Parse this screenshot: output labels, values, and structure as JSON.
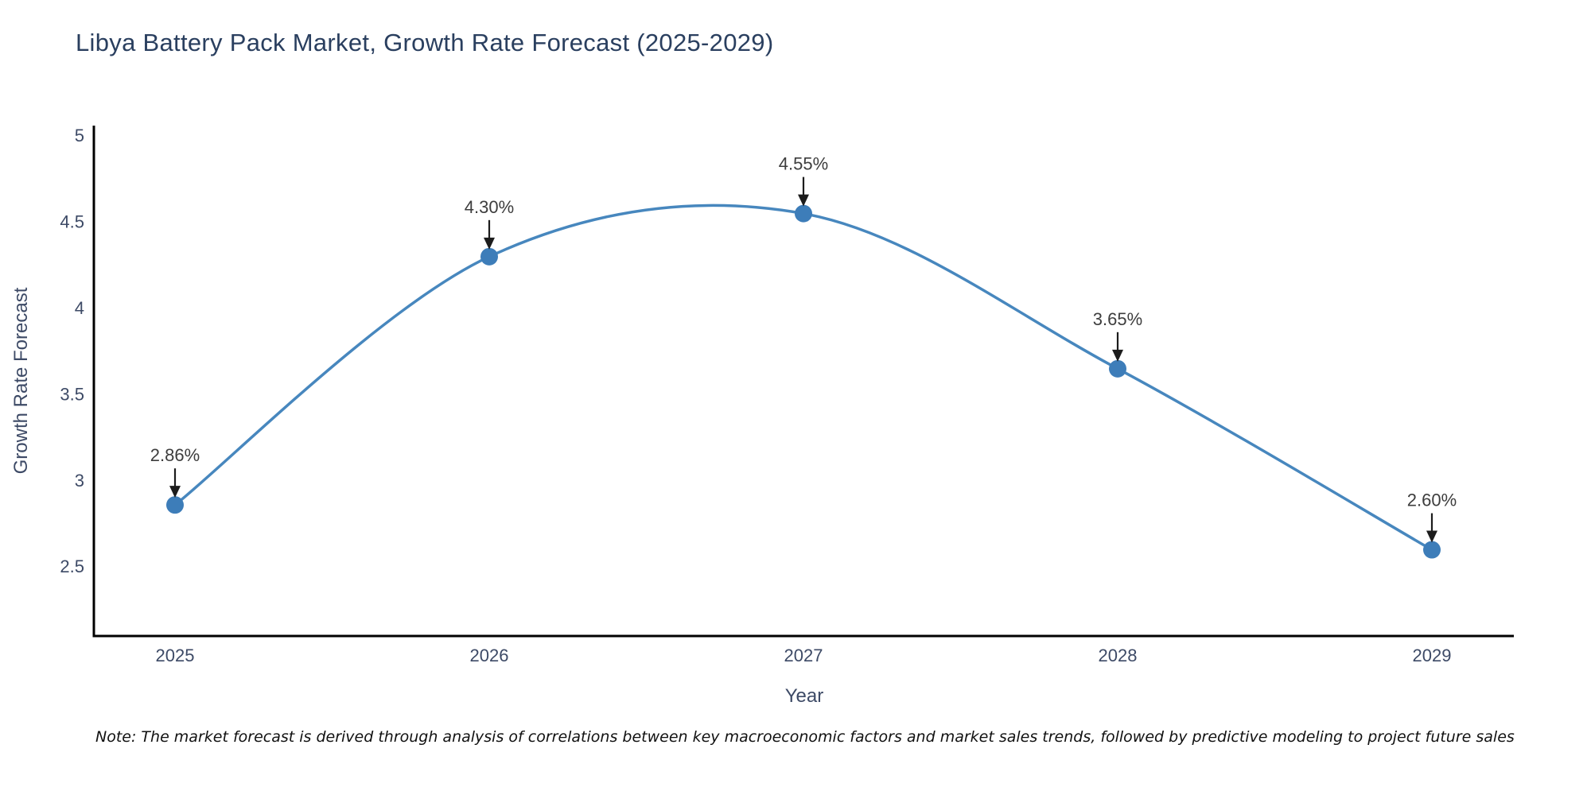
{
  "page": {
    "background": "#ffffff"
  },
  "chart_data": {
    "type": "line",
    "title": "Libya Battery Pack Market, Growth Rate Forecast (2025-2029)",
    "xlabel": "Year",
    "ylabel": "Growth Rate Forecast",
    "x": [
      2025,
      2026,
      2027,
      2028,
      2029
    ],
    "series": [
      {
        "name": "Growth Rate Forecast",
        "values": [
          2.86,
          4.3,
          4.55,
          3.65,
          2.6
        ]
      }
    ],
    "point_labels": [
      "2.86%",
      "4.30%",
      "4.55%",
      "3.65%",
      "2.60%"
    ],
    "yticks": [
      2.5,
      3,
      3.5,
      4,
      4.5,
      5
    ],
    "ylim": [
      2.1,
      5.06
    ],
    "line_shape": "spline",
    "grid": false,
    "legend": "none",
    "colors": {
      "line": "#4787be",
      "marker": "#3d7db9",
      "axis": "#000000",
      "title_text": "#2a3f5f",
      "tick_text": "#3d4a66",
      "annotation_text": "#3d3d3d",
      "arrow": "#1c1c1c"
    }
  },
  "note": "Note: The market forecast is derived through analysis of correlations between key macroeconomic factors and market sales trends, followed by predictive modeling to project future sales"
}
